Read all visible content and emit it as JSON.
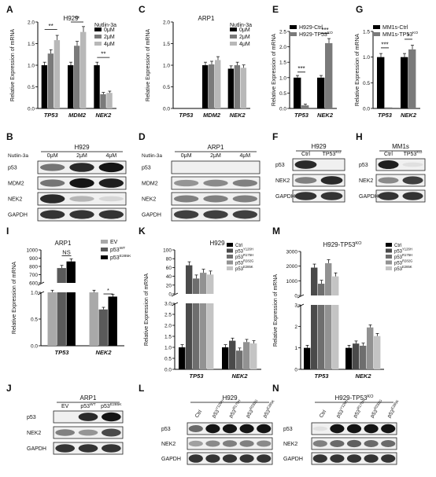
{
  "panel_letters": [
    "A",
    "B",
    "C",
    "D",
    "E",
    "F",
    "G",
    "H",
    "I",
    "J",
    "K",
    "L",
    "M",
    "N"
  ],
  "chart_data": [
    {
      "panel": "A",
      "type": "bar",
      "title": "H929",
      "legend_title": "Nutlin-3a",
      "ylabel": "Relative Expression of mRNA",
      "ylim": [
        0,
        2.0
      ],
      "yticks": [
        0.0,
        0.5,
        1.0,
        1.5,
        2.0
      ],
      "categories": [
        "TP53",
        "MDM2",
        "NEK2"
      ],
      "series": [
        {
          "name": "0μM",
          "color": "#000000",
          "values": [
            1.0,
            1.0,
            1.0
          ]
        },
        {
          "name": "2μM",
          "color": "#7a7a7a",
          "values": [
            1.27,
            1.45,
            0.33
          ]
        },
        {
          "name": "4μM",
          "color": "#b8b8b8",
          "values": [
            1.58,
            1.77,
            0.36
          ]
        }
      ],
      "significance": [
        "**",
        "**",
        "**"
      ]
    },
    {
      "panel": "C",
      "type": "bar",
      "title": "ARP1",
      "legend_title": "Nutlin-3a",
      "ylabel": "Relative Expression of mRNA",
      "ylim": [
        0,
        2.0
      ],
      "yticks": [
        0.0,
        0.5,
        1.0,
        1.5,
        2.0
      ],
      "categories": [
        "TP53",
        "MDM2",
        "NEK2"
      ],
      "series": [
        {
          "name": "0μM",
          "color": "#000000",
          "values": [
            0,
            1.0,
            0.92
          ]
        },
        {
          "name": "2μM",
          "color": "#7a7a7a",
          "values": [
            0,
            1.02,
            1.0
          ]
        },
        {
          "name": "4μM",
          "color": "#b8b8b8",
          "values": [
            0,
            1.12,
            0.94
          ]
        }
      ]
    },
    {
      "panel": "E",
      "type": "bar",
      "ylabel": "Relative Expression of mRNA",
      "ylim": [
        0,
        2.5
      ],
      "yticks": [
        0.0,
        0.5,
        1.0,
        1.5,
        2.0,
        2.5
      ],
      "categories": [
        "TP53",
        "NEK2"
      ],
      "series": [
        {
          "name": "H929-Ctrl",
          "color": "#000000",
          "values": [
            1.0,
            1.0
          ]
        },
        {
          "name": "H929-TP53",
          "sup": "KO",
          "color": "#7a7a7a",
          "values": [
            0.1,
            2.12
          ]
        }
      ],
      "significance": [
        "***",
        "***"
      ]
    },
    {
      "panel": "G",
      "type": "bar",
      "ylabel": "Relative Expression of mRNA",
      "ylim": [
        0,
        1.5
      ],
      "yticks": [
        0.0,
        0.5,
        1.0,
        1.5
      ],
      "categories": [
        "TP53",
        "NEK2"
      ],
      "series": [
        {
          "name": "MM1s-Ctrl",
          "color": "#000000",
          "values": [
            1.0,
            1.0
          ]
        },
        {
          "name": "MM1s-TP53",
          "sup": "KO",
          "color": "#7a7a7a",
          "values": [
            0.02,
            1.15
          ]
        }
      ],
      "significance": [
        "***",
        "*"
      ]
    },
    {
      "panel": "I",
      "type": "bar",
      "title": "ARP1",
      "ylabel": "Relative Expression of mRNA",
      "axis_break": true,
      "yticks_upper": [
        600,
        700,
        800,
        900,
        1000
      ],
      "yticks_lower": [
        0.0,
        0.5,
        1.0
      ],
      "categories": [
        "TP53",
        "NEK2"
      ],
      "series": [
        {
          "name": "EV",
          "color": "#a9a9a9",
          "values": [
            1.0,
            1.0
          ]
        },
        {
          "name": "p53",
          "sup": "WT",
          "color": "#5a5a5a",
          "values": [
            780,
            0.68
          ]
        },
        {
          "name": "p53",
          "sup": "E285K",
          "color": "#000000",
          "values": [
            860,
            0.92
          ]
        }
      ],
      "significance": [
        "NS",
        "*"
      ]
    },
    {
      "panel": "K",
      "type": "bar",
      "title": "H929",
      "ylabel": "Relative Expression of mRNA",
      "axis_break": true,
      "yticks_upper": [
        0,
        20,
        40,
        60,
        80,
        100
      ],
      "yticks_lower": [
        0.0,
        0.5,
        1.0,
        1.5,
        2.0,
        2.5,
        3.0
      ],
      "categories": [
        "TP53",
        "NEK2"
      ],
      "series": [
        {
          "name": "Ctrl",
          "color": "#000000",
          "values": [
            1.0,
            1.0
          ]
        },
        {
          "name": "p53",
          "sup": "Y126H",
          "color": "#4a4a4a",
          "values": [
            65,
            1.3
          ]
        },
        {
          "name": "p53",
          "sup": "R175H",
          "color": "#6e6e6e",
          "values": [
            35,
            0.85
          ]
        },
        {
          "name": "p53",
          "sup": "R282G",
          "color": "#929292",
          "values": [
            48,
            1.24
          ]
        },
        {
          "name": "p53",
          "sup": "E285K",
          "color": "#c4c4c4",
          "values": [
            44,
            1.18
          ]
        }
      ]
    },
    {
      "panel": "M",
      "type": "bar",
      "title": "H929-TP53",
      "title_sup": "KO",
      "ylabel": "Relative Expression of mRNA",
      "axis_break": true,
      "yticks_upper": [
        0,
        1000,
        2000,
        3000
      ],
      "yticks_lower": [
        0,
        1,
        2,
        3
      ],
      "categories": [
        "TP53",
        "NEK2"
      ],
      "series": [
        {
          "name": "Ctrl",
          "color": "#000000",
          "values": [
            1.0,
            1.0
          ]
        },
        {
          "name": "p53",
          "sup": "Y126H",
          "color": "#4a4a4a",
          "values": [
            1900,
            1.2
          ]
        },
        {
          "name": "p53",
          "sup": "R175H",
          "color": "#6e6e6e",
          "values": [
            800,
            1.1
          ]
        },
        {
          "name": "p53",
          "sup": "R282G",
          "color": "#929292",
          "values": [
            2200,
            1.95
          ]
        },
        {
          "name": "p53",
          "sup": "E285K",
          "color": "#c4c4c4",
          "values": [
            1300,
            1.55
          ]
        }
      ]
    }
  ],
  "blots": [
    {
      "panel": "B",
      "cell": "H929",
      "treatment": "Nutlin-3a",
      "lanes": [
        "0μM",
        "2μM",
        "4μM"
      ],
      "rows": [
        {
          "label": "p53",
          "bands": [
            0.55,
            0.9,
            1.0
          ]
        },
        {
          "label": "MDM2",
          "bands": [
            0.55,
            1.0,
            0.95
          ]
        },
        {
          "label": "NEK2",
          "bands": [
            0.9,
            0.25,
            0.1
          ]
        },
        {
          "label": "GAPDH",
          "bands": [
            0.85,
            0.85,
            0.85
          ]
        }
      ]
    },
    {
      "panel": "D",
      "cell": "ARP1",
      "treatment": "Nutlin-3a",
      "lanes": [
        "0μM",
        "2μM",
        "4μM"
      ],
      "rows": [
        {
          "label": "p53",
          "bands": [
            0,
            0,
            0
          ]
        },
        {
          "label": "MDM2",
          "bands": [
            0.4,
            0.45,
            0.5
          ]
        },
        {
          "label": "NEK2",
          "bands": [
            0.5,
            0.5,
            0.5
          ]
        },
        {
          "label": "GAPDH",
          "bands": [
            0.8,
            0.8,
            0.8
          ]
        }
      ]
    },
    {
      "panel": "F",
      "cell": "H929",
      "lanes": [
        "Ctrl",
        "TP53"
      ],
      "lane_sups": [
        "",
        "KO"
      ],
      "rows": [
        {
          "label": "p53",
          "bands": [
            0.9,
            0
          ]
        },
        {
          "label": "NEK2",
          "bands": [
            0.5,
            0.9
          ]
        },
        {
          "label": "GAPDH",
          "bands": [
            0.85,
            0.85
          ]
        }
      ]
    },
    {
      "panel": "H",
      "cell": "MM1s",
      "lanes": [
        "Ctrl",
        "TP53"
      ],
      "lane_sups": [
        "",
        "KO"
      ],
      "rows": [
        {
          "label": "p53",
          "bands": [
            0.95,
            0.05
          ]
        },
        {
          "label": "NEK2",
          "bands": [
            0.45,
            0.8
          ]
        },
        {
          "label": "GAPDH",
          "bands": [
            0.85,
            0.85
          ]
        }
      ]
    },
    {
      "panel": "J",
      "cell": "ARP1",
      "lanes": [
        "EV",
        "p53",
        "p53"
      ],
      "lane_sups": [
        "",
        "WT",
        "E285K"
      ],
      "rows": [
        {
          "label": "p53",
          "bands": [
            0,
            0.9,
            1.0
          ]
        },
        {
          "label": "NEK2",
          "bands": [
            0.5,
            0.4,
            0.75
          ]
        },
        {
          "label": "GAPDH",
          "bands": [
            0.85,
            0.85,
            0.85
          ]
        }
      ]
    },
    {
      "panel": "L",
      "cell": "H929",
      "lanes": [
        "Ctrl",
        "p53",
        "p53",
        "p53",
        "p53"
      ],
      "lane_sups": [
        "",
        "Y126H",
        "R175H",
        "R282G",
        "E285K"
      ],
      "rows": [
        {
          "label": "p53",
          "bands": [
            0.6,
            1.0,
            1.0,
            1.0,
            1.0
          ]
        },
        {
          "label": "NEK2",
          "bands": [
            0.35,
            0.45,
            0.5,
            0.5,
            0.45
          ]
        },
        {
          "label": "GAPDH",
          "bands": [
            0.85,
            0.85,
            0.85,
            0.85,
            0.85
          ]
        }
      ]
    },
    {
      "panel": "N",
      "cell": "H929-TP53",
      "cell_sup": "KO",
      "lanes": [
        "Ctrl",
        "p53",
        "p53",
        "p53",
        "p53"
      ],
      "lane_sups": [
        "",
        "Y126H",
        "R175H",
        "R282G",
        "E285K"
      ],
      "rows": [
        {
          "label": "p53",
          "bands": [
            0.05,
            1.0,
            1.0,
            1.0,
            1.0
          ]
        },
        {
          "label": "NEK2",
          "bands": [
            0.5,
            0.6,
            0.65,
            0.6,
            0.6
          ]
        },
        {
          "label": "GAPDH",
          "bands": [
            0.85,
            0.85,
            0.85,
            0.85,
            0.85
          ]
        }
      ]
    }
  ]
}
